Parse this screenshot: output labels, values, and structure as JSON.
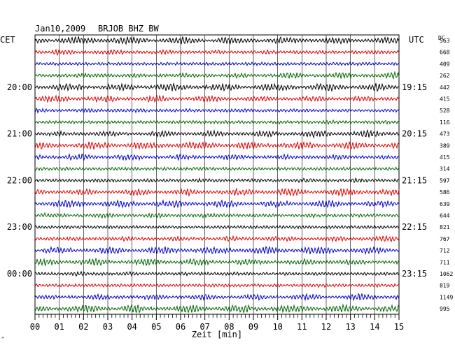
{
  "header": {
    "date": "Jan10,2009",
    "station": "BRJOB BHZ BW",
    "left_tz": "CET",
    "right_tz": "UTC",
    "dc_label": "DC"
  },
  "footer": {
    "xlabel": "Zeit [min]",
    "corner_mark": "^"
  },
  "chart_data": {
    "type": "line",
    "title": "Jan10,2009   BRJOB BHZ BW",
    "xlabel": "Zeit [min]",
    "xlim": [
      0,
      15
    ],
    "x_ticks": [
      "00",
      "01",
      "02",
      "03",
      "04",
      "05",
      "06",
      "07",
      "08",
      "09",
      "10",
      "11",
      "12",
      "13",
      "14",
      "15"
    ],
    "trace_count": 24,
    "trace_colors": [
      "#000000",
      "#e00000",
      "#0000c8",
      "#006400"
    ],
    "grid": true,
    "left_hour_labels": [
      {
        "trace": 4,
        "label": "20:00"
      },
      {
        "trace": 8,
        "label": "21:00"
      },
      {
        "trace": 12,
        "label": "22:00"
      },
      {
        "trace": 16,
        "label": "23:00"
      },
      {
        "trace": 20,
        "label": "00:00"
      }
    ],
    "right_hour_labels": [
      {
        "trace": 4,
        "label": "19:15"
      },
      {
        "trace": 8,
        "label": "20:15"
      },
      {
        "trace": 12,
        "label": "21:15"
      },
      {
        "trace": 16,
        "label": "22:15"
      },
      {
        "trace": 20,
        "label": "23:15"
      }
    ],
    "dc_values": [
      "563",
      "668",
      "409",
      "262",
      "442",
      "415",
      "528",
      "116",
      "473",
      "389",
      "415",
      "314",
      "597",
      "586",
      "639",
      "644",
      "821",
      "767",
      "712",
      "711",
      "1062",
      "819",
      "1149",
      "995"
    ]
  }
}
